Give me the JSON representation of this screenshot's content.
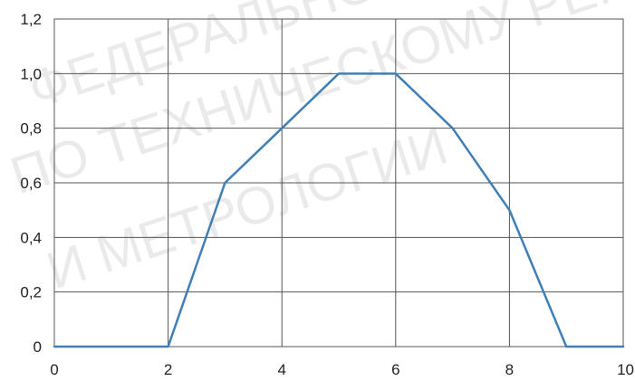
{
  "chart_data": {
    "type": "line",
    "title": "",
    "xlabel": "",
    "ylabel": "",
    "xlim": [
      0,
      10
    ],
    "ylim": [
      0,
      1.2
    ],
    "grid": true,
    "x_ticks": [
      0,
      2,
      4,
      6,
      8,
      10
    ],
    "x_tick_labels": [
      "0",
      "2",
      "4",
      "6",
      "8",
      "10"
    ],
    "y_ticks": [
      0,
      0.2,
      0.4,
      0.6,
      0.8,
      1.0,
      1.2
    ],
    "y_tick_labels": [
      "0",
      "0,2",
      "0,4",
      "0,6",
      "0,8",
      "1,0",
      "1,2"
    ],
    "series": [
      {
        "color": "#3f7fb5",
        "x": [
          0,
          2,
          3,
          4,
          5,
          6,
          7,
          8,
          9,
          10
        ],
        "y": [
          0,
          0,
          0.6,
          0.8,
          1.0,
          1.0,
          0.8,
          0.5,
          0,
          0
        ]
      }
    ]
  },
  "watermark": {
    "lines": [
      "ФЕДЕРАЛЬНОЕ АГЕНТСТВО",
      "ПО ТЕХНИЧЕСКОМУ РЕГУ",
      "И МЕТРОЛОГИИ"
    ]
  },
  "colors": {
    "grid": "#555555",
    "background": "#ffffff"
  }
}
